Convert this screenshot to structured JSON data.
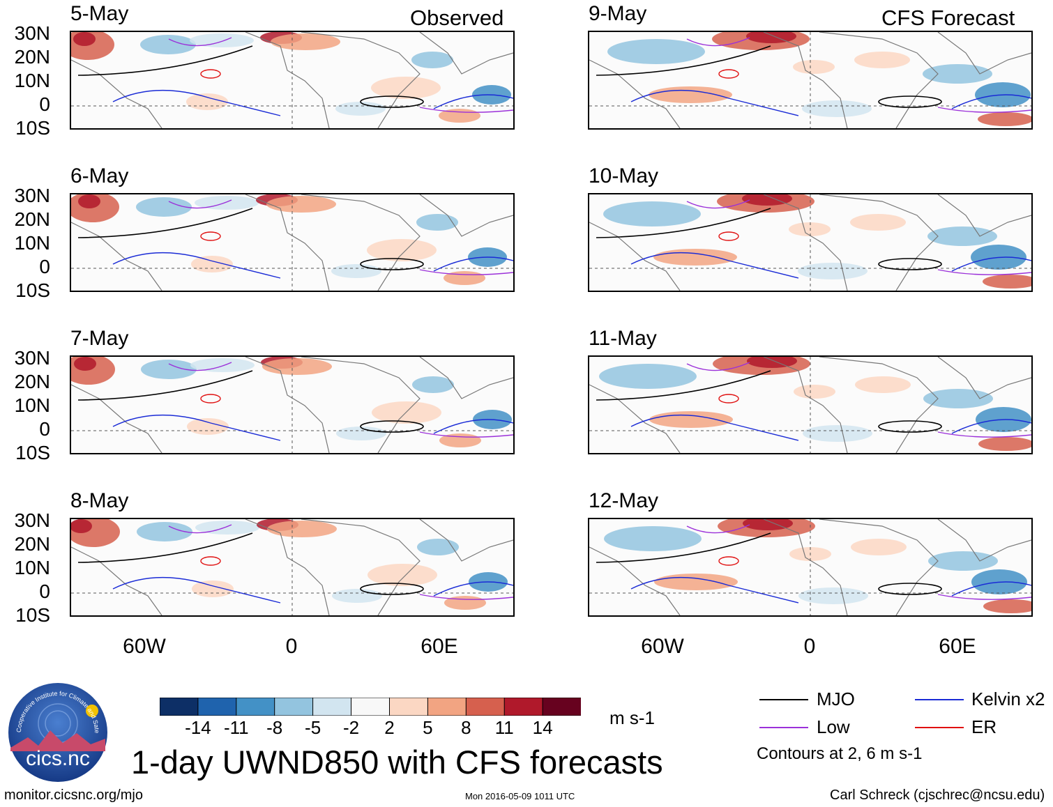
{
  "headers": {
    "observed": "Observed",
    "forecast": "CFS Forecast"
  },
  "panels": {
    "left": [
      "5-May",
      "6-May",
      "7-May",
      "8-May"
    ],
    "right": [
      "9-May",
      "10-May",
      "11-May",
      "12-May"
    ]
  },
  "lat_labels": [
    "30N",
    "20N",
    "10N",
    "0",
    "10S"
  ],
  "lon_labels": [
    "60W",
    "0",
    "60E"
  ],
  "colorbar": {
    "colors": [
      "#0d2f66",
      "#1f63ad",
      "#4391c6",
      "#93c4df",
      "#d2e5f0",
      "#f8f8f8",
      "#fbd7c3",
      "#f2a482",
      "#d6604e",
      "#b0192b",
      "#67021f"
    ],
    "ticks": [
      "-14",
      "-11",
      "-8",
      "-5",
      "-2",
      "2",
      "5",
      "8",
      "11",
      "14"
    ],
    "units": "m s-1"
  },
  "title": "1-day UWND850 with CFS forecasts",
  "legend": {
    "items": [
      {
        "label": "MJO",
        "color": "#000000"
      },
      {
        "label": "Kelvin x2",
        "color": "#1a2bd6"
      },
      {
        "label": "Low",
        "color": "#9b30d9"
      },
      {
        "label": "ER",
        "color": "#e01010"
      }
    ],
    "note": "Contours at 2, 6 m s-1"
  },
  "logo": {
    "text": "cics.nc",
    "ring_text": "Cooperative Institute for Climate and Satellites"
  },
  "footer": {
    "url": "monitor.cicsnc.org/mjo",
    "timestamp": "Mon 2016-05-09 1011 UTC",
    "credit": "Carl Schreck (cjschrec@ncsu.edu)"
  }
}
